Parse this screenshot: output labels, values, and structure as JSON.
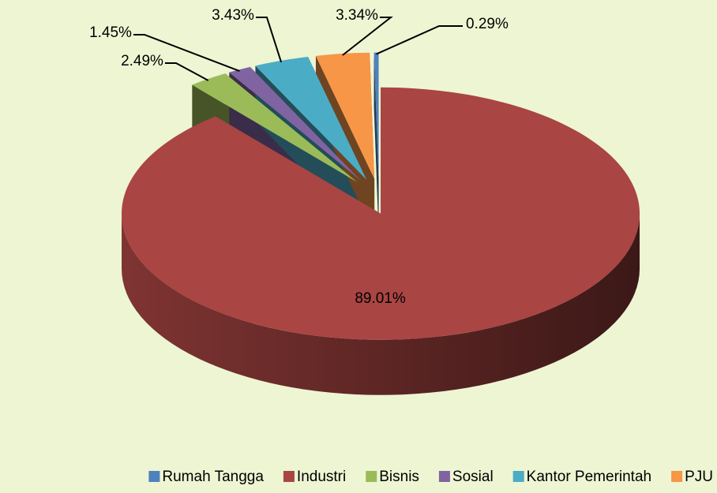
{
  "chart_data": {
    "type": "pie3d",
    "categories": [
      "Rumah Tangga",
      "Industri",
      "Bisnis",
      "Sosial",
      "Kantor Pemerintah",
      "PJU"
    ],
    "values": [
      0.29,
      89.01,
      2.49,
      1.45,
      3.43,
      3.34
    ],
    "value_labels": [
      "0.29%",
      "89.01%",
      "2.49%",
      "1.45%",
      "3.43%",
      "3.34%"
    ],
    "colors": [
      "#4f81bd",
      "#a94543",
      "#9bbb59",
      "#8064a2",
      "#4bacc6",
      "#f79646"
    ],
    "legend": "bottom"
  }
}
